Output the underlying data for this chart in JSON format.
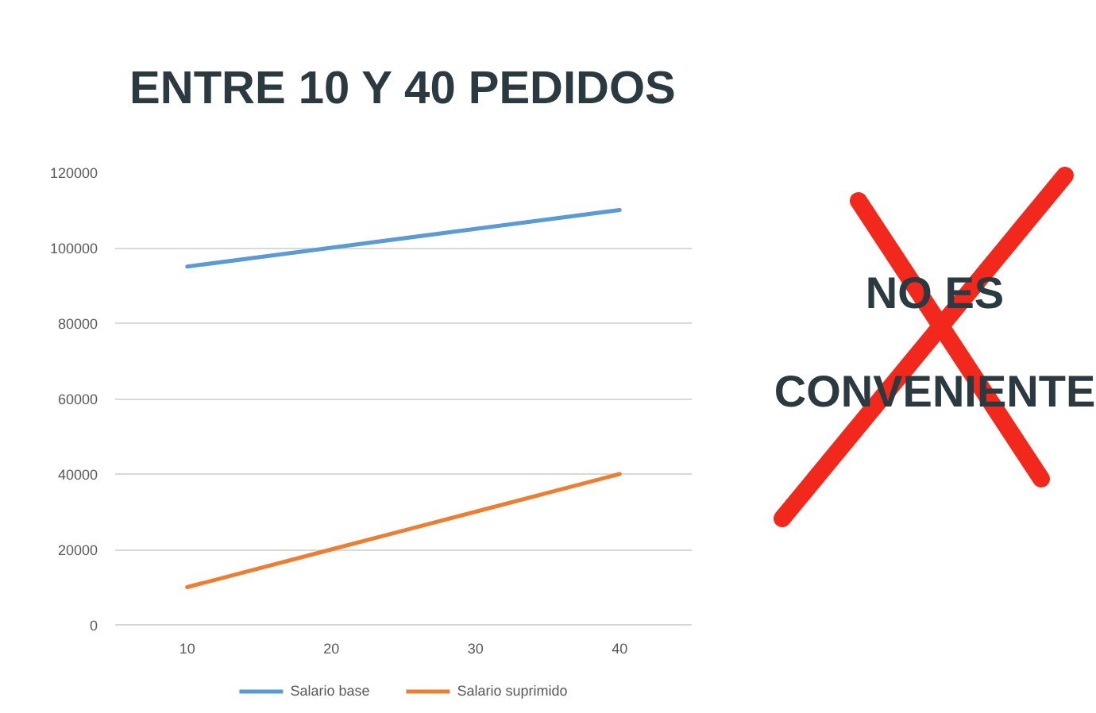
{
  "chart_data": {
    "type": "line",
    "title": "ENTRE 10 Y 40 PEDIDOS",
    "categories": [
      "10",
      "20",
      "30",
      "40"
    ],
    "series": [
      {
        "name": "Salario base",
        "color": "#5b9bd5",
        "values": [
          95000,
          100000,
          105000,
          110000
        ]
      },
      {
        "name": "Salario suprimido",
        "color": "#ed7d31",
        "values": [
          10000,
          20000,
          30000,
          40000
        ]
      }
    ],
    "ylim": [
      0,
      120000
    ],
    "yticks": [
      0,
      20000,
      40000,
      60000,
      80000,
      100000,
      120000
    ],
    "grid": "y",
    "legend": "bottom",
    "annotations": [
      "NO ES\nCONVENIENTE"
    ]
  }
}
